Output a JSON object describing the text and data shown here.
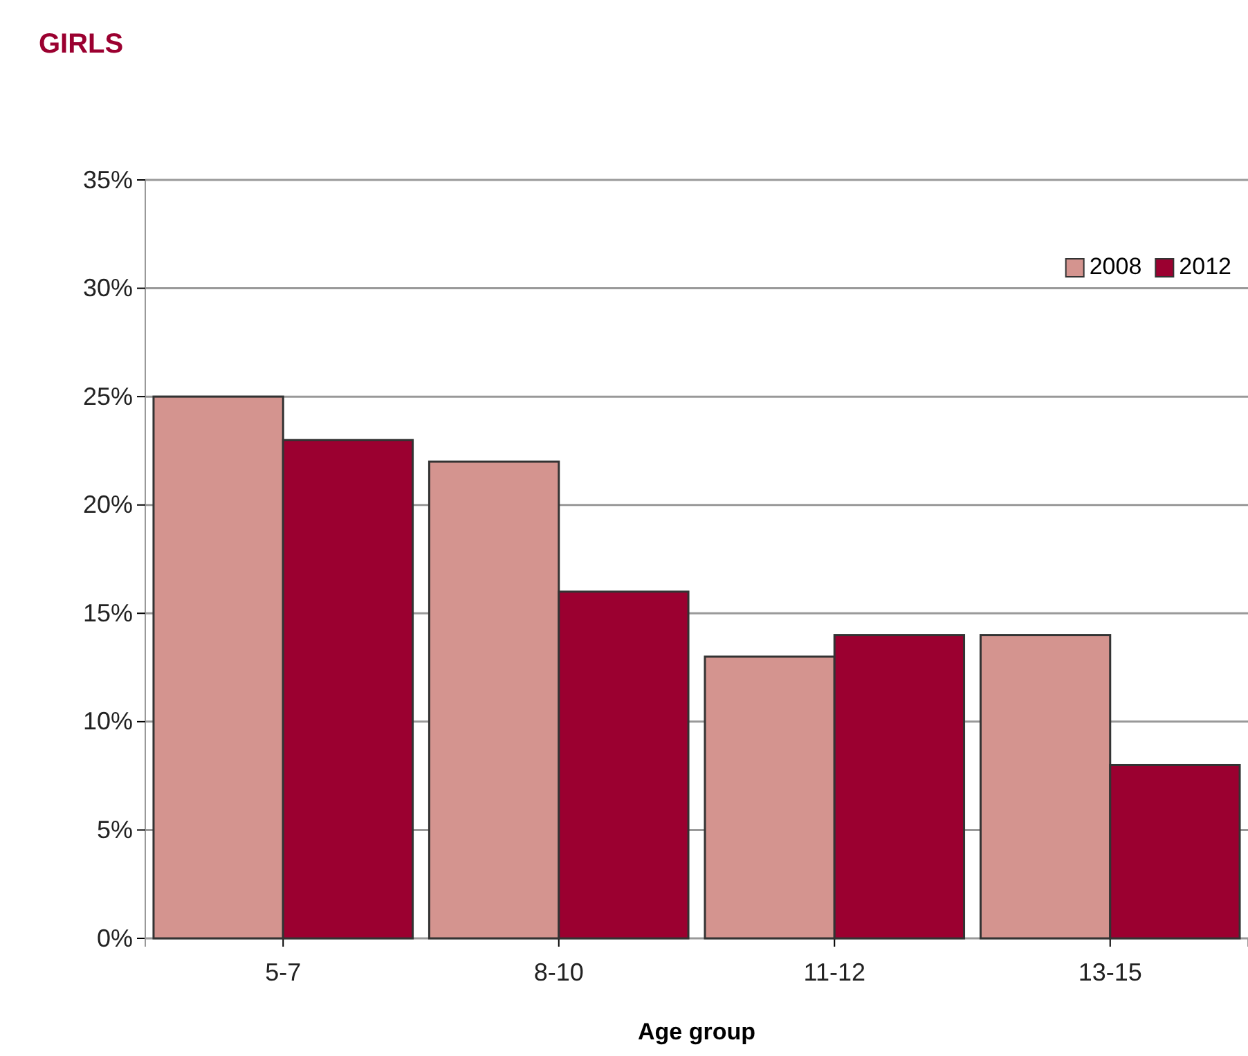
{
  "chart_data": {
    "type": "bar",
    "title": "GIRLS",
    "xlabel": "Age group",
    "categories": [
      "5-7",
      "8-10",
      "11-12",
      "13-15"
    ],
    "series": [
      {
        "name": "2008",
        "color": "#d4948f",
        "values": [
          25,
          22,
          13,
          14
        ]
      },
      {
        "name": "2012",
        "color": "#9b0030",
        "values": [
          23,
          16,
          14,
          8
        ]
      }
    ],
    "ylim": [
      0,
      35
    ],
    "yticks": [
      {
        "value": 0,
        "label": "0%"
      },
      {
        "value": 5,
        "label": "5%"
      },
      {
        "value": 10,
        "label": "10%"
      },
      {
        "value": 15,
        "label": "15%"
      },
      {
        "value": 20,
        "label": "20%"
      },
      {
        "value": 25,
        "label": "25%"
      },
      {
        "value": 30,
        "label": "30%"
      },
      {
        "value": 35,
        "label": "35%"
      }
    ],
    "grid": "y",
    "legend": "top right"
  }
}
